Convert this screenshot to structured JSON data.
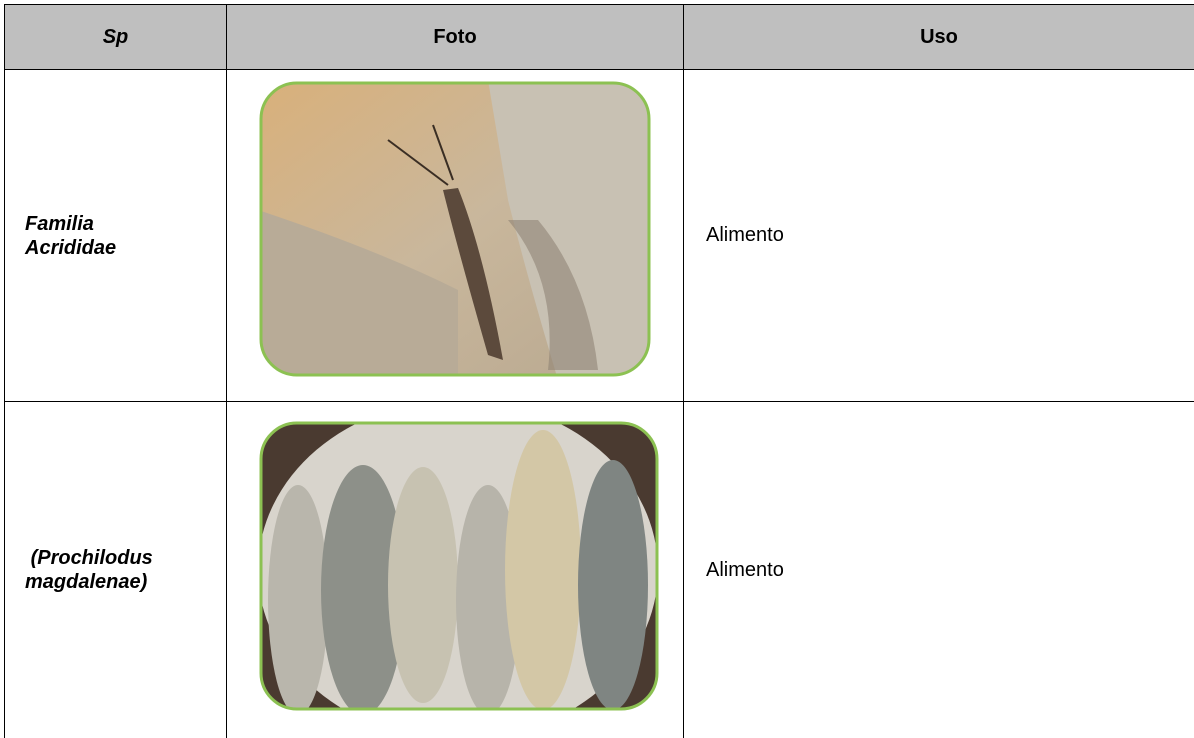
{
  "table": {
    "header": [
      "Sp",
      "Foto",
      "Uso"
    ],
    "rows": [
      [
        "Familia Acrididae",
        "Alimento"
      ],
      [
        " (Prochilodus magdalenae)",
        "Alimento"
      ]
    ]
  }
}
